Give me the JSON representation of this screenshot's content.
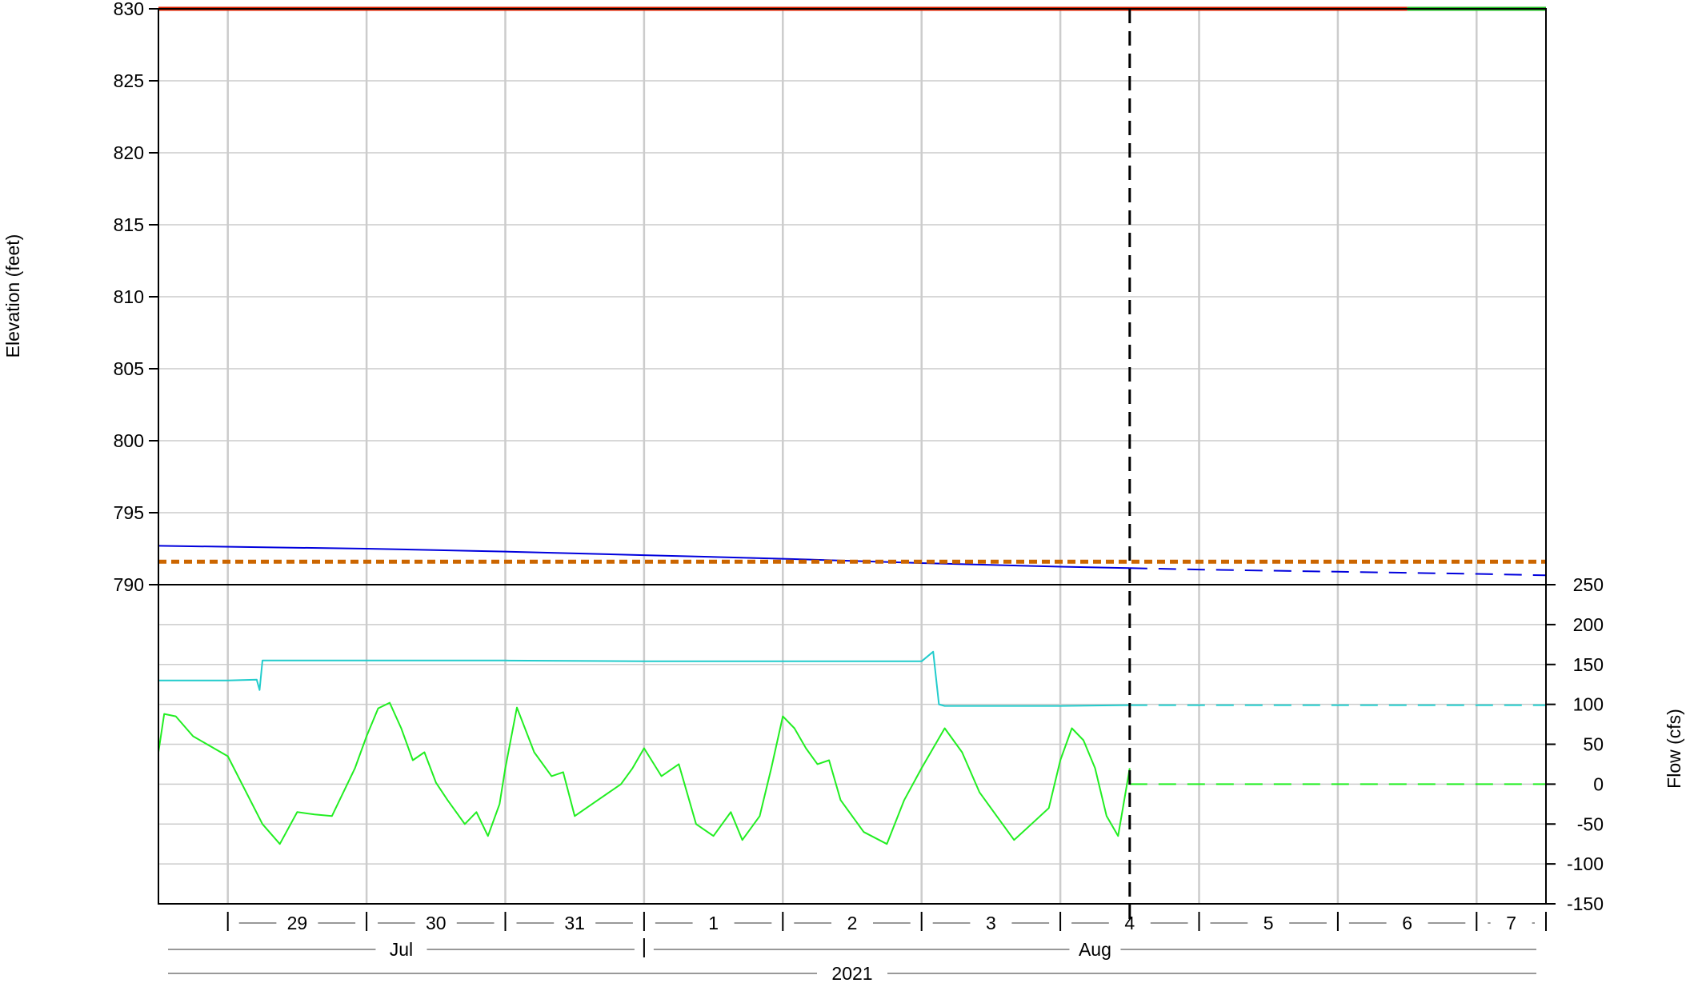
{
  "chart_data": [
    {
      "type": "line",
      "panel": "elevation",
      "ylabel": "Elevation (feet)",
      "ylim": [
        790,
        830
      ],
      "yticks": [
        790,
        795,
        800,
        805,
        810,
        815,
        820,
        825,
        830
      ],
      "xlim": [
        "2021-07-28T12:00",
        "2021-08-07T12:00"
      ],
      "grid": true,
      "series": [
        {
          "color": "#0000dd",
          "style": "solid",
          "x": [
            "2021-07-28T12:00",
            "2021-07-30T00:00",
            "2021-07-31T00:00",
            "2021-08-01T00:00",
            "2021-08-02T00:00",
            "2021-08-03T00:00",
            "2021-08-04T00:00",
            "2021-08-04T12:00"
          ],
          "y": [
            792.7,
            792.5,
            792.3,
            792.05,
            791.8,
            791.5,
            791.25,
            791.15
          ]
        },
        {
          "color": "#0000dd",
          "style": "dashed",
          "x": [
            "2021-08-04T12:00",
            "2021-08-05T00:00",
            "2021-08-06T00:00",
            "2021-08-07T00:00",
            "2021-08-07T12:00"
          ],
          "y": [
            791.15,
            791.05,
            790.9,
            790.75,
            790.65
          ]
        },
        {
          "color": "#cc6600",
          "style": "dotted",
          "x": [
            "2021-07-28T12:00",
            "2021-08-07T12:00"
          ],
          "y": [
            791.6,
            791.6
          ]
        },
        {
          "color": "#dd2200",
          "style": "solid",
          "x": [
            "2021-07-28T12:00",
            "2021-08-06T12:00"
          ],
          "y": [
            830,
            830
          ]
        },
        {
          "color": "#22bb22",
          "style": "solid",
          "x": [
            "2021-08-06T12:00",
            "2021-08-07T12:00"
          ],
          "y": [
            830,
            830
          ]
        }
      ]
    },
    {
      "type": "line",
      "panel": "flow",
      "ylabel": "Flow (cfs)",
      "ylim": [
        -150,
        250
      ],
      "yticks": [
        -150,
        -100,
        -50,
        0,
        50,
        100,
        150,
        200,
        250
      ],
      "grid": true,
      "series": [
        {
          "color": "#22cccc",
          "style": "solid",
          "x": [
            "2021-07-28T12:00",
            "2021-07-29T00:00",
            "2021-07-29T05:00",
            "2021-07-29T05:30",
            "2021-07-29T06:00",
            "2021-07-30T00:00",
            "2021-07-31T00:00",
            "2021-08-01T00:00",
            "2021-08-02T00:00",
            "2021-08-03T00:00",
            "2021-08-03T02:00",
            "2021-08-03T03:00",
            "2021-08-03T04:00",
            "2021-08-04T00:00",
            "2021-08-04T12:00"
          ],
          "y": [
            130,
            130,
            131,
            118,
            155,
            155,
            155,
            154,
            154,
            154,
            166,
            100,
            98,
            98,
            99
          ]
        },
        {
          "color": "#22cccc",
          "style": "dashed",
          "x": [
            "2021-08-04T12:00",
            "2021-08-07T12:00"
          ],
          "y": [
            99,
            99
          ]
        },
        {
          "color": "#22ee22",
          "style": "solid",
          "x": [
            "2021-07-28T12:00",
            "2021-07-28T13:00",
            "2021-07-28T15:00",
            "2021-07-28T18:00",
            "2021-07-29T00:00",
            "2021-07-29T06:00",
            "2021-07-29T09:00",
            "2021-07-29T12:00",
            "2021-07-29T15:00",
            "2021-07-29T18:00",
            "2021-07-29T22:00",
            "2021-07-30T00:00",
            "2021-07-30T02:00",
            "2021-07-30T04:00",
            "2021-07-30T06:00",
            "2021-07-30T08:00",
            "2021-07-30T10:00",
            "2021-07-30T12:00",
            "2021-07-30T14:00",
            "2021-07-30T17:00",
            "2021-07-30T19:00",
            "2021-07-30T21:00",
            "2021-07-30T23:00",
            "2021-07-31T00:00",
            "2021-07-31T02:00",
            "2021-07-31T05:00",
            "2021-07-31T08:00",
            "2021-07-31T10:00",
            "2021-07-31T12:00",
            "2021-07-31T16:00",
            "2021-07-31T20:00",
            "2021-07-31T22:00",
            "2021-08-01T00:00",
            "2021-08-01T03:00",
            "2021-08-01T06:00",
            "2021-08-01T09:00",
            "2021-08-01T12:00",
            "2021-08-01T15:00",
            "2021-08-01T17:00",
            "2021-08-01T20:00",
            "2021-08-01T22:00",
            "2021-08-02T00:00",
            "2021-08-02T02:00",
            "2021-08-02T04:00",
            "2021-08-02T06:00",
            "2021-08-02T08:00",
            "2021-08-02T10:00",
            "2021-08-02T14:00",
            "2021-08-02T18:00",
            "2021-08-02T21:00",
            "2021-08-03T00:00",
            "2021-08-03T04:00",
            "2021-08-03T07:00",
            "2021-08-03T10:00",
            "2021-08-03T13:00",
            "2021-08-03T16:00",
            "2021-08-03T19:00",
            "2021-08-03T22:00",
            "2021-08-04T00:00",
            "2021-08-04T02:00",
            "2021-08-04T04:00",
            "2021-08-04T06:00",
            "2021-08-04T08:00",
            "2021-08-04T10:00",
            "2021-08-04T12:00"
          ],
          "y": [
            40,
            88,
            85,
            60,
            35,
            -50,
            -75,
            -35,
            -38,
            -40,
            20,
            60,
            95,
            102,
            70,
            30,
            40,
            2,
            -20,
            -50,
            -35,
            -65,
            -25,
            20,
            96,
            40,
            10,
            15,
            -40,
            -20,
            0,
            20,
            45,
            10,
            25,
            -50,
            -65,
            -35,
            -70,
            -40,
            20,
            85,
            70,
            45,
            25,
            30,
            -20,
            -60,
            -75,
            -20,
            20,
            70,
            40,
            -10,
            -40,
            -70,
            -50,
            -30,
            30,
            70,
            55,
            20,
            -40,
            -65,
            20
          ]
        },
        {
          "color": "#22ee22",
          "style": "dashed",
          "x": [
            "2021-08-04T12:00",
            "2021-08-07T12:00"
          ],
          "y": [
            0,
            0
          ]
        }
      ]
    }
  ],
  "x_axis": {
    "days": [
      "29",
      "30",
      "31",
      "1",
      "2",
      "3",
      "4",
      "5",
      "6",
      "7"
    ],
    "months": [
      {
        "label": "Jul",
        "from": "2021-07-28T12:00",
        "to": "2021-08-01T00:00"
      },
      {
        "label": "Aug",
        "from": "2021-08-01T00:00",
        "to": "2021-08-07T12:00"
      }
    ],
    "year": "2021"
  },
  "current_time_marker": "2021-08-04T12:00",
  "colors": {
    "grid": "#cccccc",
    "axis": "#000000",
    "label_rule": "#999999"
  }
}
